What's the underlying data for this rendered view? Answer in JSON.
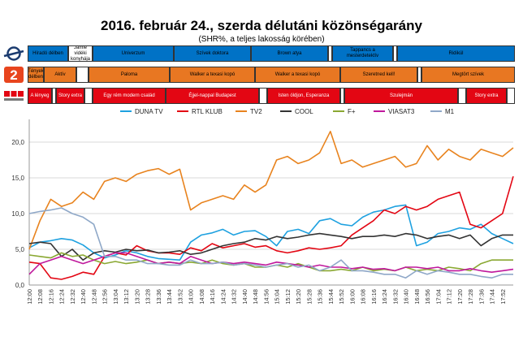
{
  "header": {
    "title": "2016. február 24., szerda délutáni közönségarány",
    "subtitle": "(SHR%, a teljes lakosság körében)"
  },
  "colors": {
    "duna_block": "#0072c6",
    "tv2_block": "#e87722",
    "rtl_block": "#e30613",
    "tv2_logo": "#e8451e",
    "rtl_logo": "#e30613",
    "duna_logo": "#1b3b6f"
  },
  "schedule": [
    {
      "channel": "DUNA TV",
      "logo_icon": "duna-tv-logo-icon",
      "color": "#0072c6",
      "programs": [
        {
          "label": "Híradó délben",
          "start": 0,
          "end": 10,
          "filled": true
        },
        {
          "label": "Jamie vidéki konyhája",
          "start": 10,
          "end": 16,
          "filled": false
        },
        {
          "label": "Univerzum",
          "start": 16,
          "end": 36,
          "filled": true
        },
        {
          "label": "Szívek doktora",
          "start": 36,
          "end": 55,
          "filled": true
        },
        {
          "label": "Brown atya",
          "start": 55,
          "end": 74,
          "filled": true
        },
        {
          "label": "",
          "start": 74,
          "end": 75,
          "filled": false
        },
        {
          "label": "Tappancs a mesterdetektív",
          "start": 75,
          "end": 90,
          "filled": true
        },
        {
          "label": "",
          "start": 90,
          "end": 91,
          "filled": false
        },
        {
          "label": "Ridikül",
          "start": 91,
          "end": 120,
          "filled": true
        }
      ]
    },
    {
      "channel": "TV2",
      "logo_icon": "tv2-logo-icon",
      "color": "#e87722",
      "programs": [
        {
          "label": "Tények délben",
          "start": 0,
          "end": 4,
          "filled": true
        },
        {
          "label": "Aktív",
          "start": 4,
          "end": 12,
          "filled": true
        },
        {
          "label": "",
          "start": 12,
          "end": 15,
          "filled": false
        },
        {
          "label": "Paloma",
          "start": 15,
          "end": 35,
          "filled": true
        },
        {
          "label": "Walker a texasi kopó",
          "start": 35,
          "end": 56,
          "filled": true
        },
        {
          "label": "Walker a texasi kopó",
          "start": 56,
          "end": 77,
          "filled": true
        },
        {
          "label": "Szeretned kell!",
          "start": 77,
          "end": 96,
          "filled": true
        },
        {
          "label": "",
          "start": 96,
          "end": 97,
          "filled": false
        },
        {
          "label": "Megtört szívek",
          "start": 97,
          "end": 120,
          "filled": true
        }
      ]
    },
    {
      "channel": "RTL KLUB",
      "logo_icon": "rtl-klub-logo-icon",
      "color": "#e30613",
      "programs": [
        {
          "label": "A lényeg",
          "start": 0,
          "end": 6,
          "filled": true
        },
        {
          "label": "",
          "start": 6,
          "end": 7,
          "filled": false
        },
        {
          "label": "Story extra",
          "start": 7,
          "end": 14,
          "filled": true
        },
        {
          "label": "",
          "start": 14,
          "end": 16,
          "filled": false
        },
        {
          "label": "Egy rém modern család",
          "start": 16,
          "end": 34,
          "filled": true
        },
        {
          "label": "Éjjel-nappal Budapest",
          "start": 34,
          "end": 57,
          "filled": true
        },
        {
          "label": "",
          "start": 57,
          "end": 59,
          "filled": false
        },
        {
          "label": "Isten óldjon, Esperanza",
          "start": 59,
          "end": 77,
          "filled": true
        },
        {
          "label": "",
          "start": 77,
          "end": 78,
          "filled": false
        },
        {
          "label": "Szulejmán",
          "start": 78,
          "end": 106,
          "filled": true
        },
        {
          "label": "",
          "start": 106,
          "end": 108,
          "filled": false
        },
        {
          "label": "Story extra",
          "start": 108,
          "end": 118,
          "filled": true
        },
        {
          "label": "",
          "start": 118,
          "end": 120,
          "filled": false
        }
      ]
    }
  ],
  "chart_data": {
    "type": "line",
    "title": "",
    "xlabel": "",
    "ylabel": "",
    "ylim": [
      0,
      22.5
    ],
    "yticks": [
      0,
      5,
      10,
      15,
      20
    ],
    "ytick_labels": [
      "0,0",
      "5,0",
      "10,0",
      "15,0",
      "20,0"
    ],
    "grid": "horizontal",
    "legend_position": "top",
    "x": [
      "12:00",
      "12:08",
      "12:16",
      "12:24",
      "12:32",
      "12:40",
      "12:48",
      "12:56",
      "13:04",
      "13:12",
      "13:20",
      "13:28",
      "13:36",
      "13:44",
      "13:52",
      "14:00",
      "14:08",
      "14:16",
      "14:24",
      "14:32",
      "14:40",
      "14:48",
      "14:56",
      "15:04",
      "15:12",
      "15:20",
      "15:28",
      "15:36",
      "15:44",
      "15:52",
      "16:00",
      "16:08",
      "16:16",
      "16:24",
      "16:32",
      "16:40",
      "16:48",
      "16:56",
      "17:04",
      "17:12",
      "17:20",
      "17:28",
      "17:36",
      "17:44",
      "17:52",
      "17:58"
    ],
    "xtick_labels": [
      "12:00",
      "12:08",
      "12:16",
      "12:24",
      "12:32",
      "12:40",
      "12:48",
      "12:56",
      "13:04",
      "13:12",
      "13:20",
      "13:28",
      "13:36",
      "13:44",
      "13:52",
      "14:00",
      "14:08",
      "14:16",
      "14:24",
      "14:32",
      "14:40",
      "14:48",
      "14:56",
      "15:04",
      "15:12",
      "15:20",
      "15:28",
      "15:36",
      "15:44",
      "15:52",
      "16:00",
      "16:08",
      "16:16",
      "16:24",
      "16:32",
      "16:40",
      "16:48",
      "16:56",
      "17:04",
      "17:12",
      "17:20",
      "17:28",
      "17:36",
      "17:44",
      "17:52"
    ],
    "series": [
      {
        "name": "DUNA TV",
        "color": "#1ea1e0",
        "values": [
          5.2,
          6.0,
          6.2,
          6.5,
          6.3,
          5.6,
          4.5,
          3.8,
          4.2,
          4.8,
          4.5,
          4.0,
          3.7,
          3.6,
          3.5,
          6.0,
          7.0,
          7.3,
          7.8,
          7.0,
          7.5,
          7.6,
          6.8,
          5.5,
          7.5,
          7.8,
          7.2,
          9.0,
          9.3,
          8.5,
          8.3,
          9.5,
          10.2,
          10.5,
          11.0,
          11.2,
          5.5,
          6.0,
          7.2,
          7.5,
          8.0,
          7.8,
          8.5,
          7.2,
          6.5,
          5.8
        ]
      },
      {
        "name": "RTL KLUB",
        "color": "#e30613",
        "values": [
          3.2,
          3.0,
          1.0,
          0.8,
          1.2,
          1.8,
          1.5,
          4.0,
          4.5,
          4.2,
          5.5,
          4.8,
          4.5,
          4.5,
          4.3,
          5.2,
          4.8,
          5.8,
          5.2,
          5.5,
          5.8,
          5.3,
          5.5,
          4.8,
          4.5,
          4.8,
          5.2,
          5.0,
          5.2,
          5.5,
          7.0,
          8.0,
          9.0,
          10.5,
          10.0,
          11.0,
          10.5,
          11.0,
          12.0,
          12.5,
          13.0,
          8.5,
          8.0,
          9.0,
          10.0,
          15.2
        ]
      },
      {
        "name": "TV2",
        "color": "#e8831e",
        "values": [
          5.0,
          9.0,
          12.0,
          11.0,
          11.5,
          13.0,
          12.0,
          14.5,
          15.0,
          14.5,
          15.5,
          16.0,
          16.3,
          15.5,
          16.2,
          10.5,
          11.5,
          12.0,
          12.5,
          12.0,
          14.0,
          13.0,
          14.0,
          17.5,
          18.0,
          17.0,
          17.5,
          18.5,
          21.5,
          17.0,
          17.5,
          16.5,
          17.0,
          17.5,
          18.0,
          16.5,
          17.0,
          19.5,
          17.5,
          19.0,
          18.0,
          17.5,
          19.0,
          18.5,
          18.0,
          19.2
        ]
      },
      {
        "name": "COOL",
        "color": "#333333",
        "values": [
          5.8,
          6.0,
          5.8,
          4.0,
          5.0,
          3.5,
          4.5,
          4.8,
          4.6,
          5.0,
          4.8,
          4.9,
          4.5,
          4.6,
          4.8,
          4.3,
          4.5,
          5.0,
          5.5,
          5.8,
          6.0,
          6.5,
          6.3,
          6.8,
          6.5,
          6.7,
          7.0,
          7.2,
          7.0,
          6.8,
          6.5,
          6.8,
          6.8,
          7.0,
          6.8,
          7.2,
          7.0,
          6.5,
          6.8,
          7.0,
          6.5,
          7.0,
          5.5,
          6.5,
          7.0,
          7.0
        ]
      },
      {
        "name": "F+",
        "color": "#8aa832",
        "values": [
          4.2,
          4.0,
          3.8,
          4.5,
          4.0,
          4.2,
          3.5,
          3.0,
          3.3,
          3.0,
          3.2,
          3.5,
          3.0,
          3.2,
          3.0,
          3.2,
          3.0,
          3.5,
          3.0,
          2.8,
          3.0,
          2.5,
          2.5,
          2.8,
          2.5,
          3.0,
          2.5,
          2.0,
          2.0,
          2.2,
          2.0,
          2.5,
          2.0,
          2.2,
          2.0,
          2.5,
          2.0,
          2.2,
          2.0,
          2.5,
          2.3,
          2.0,
          3.0,
          3.5,
          3.5,
          3.5
        ]
      },
      {
        "name": "VIASAT3",
        "color": "#c0189c",
        "values": [
          1.5,
          3.0,
          3.5,
          4.0,
          3.5,
          3.0,
          3.5,
          4.0,
          4.5,
          4.5,
          4.0,
          3.5,
          3.0,
          3.2,
          3.0,
          4.0,
          3.5,
          3.0,
          3.2,
          3.0,
          3.2,
          3.0,
          2.8,
          3.2,
          3.0,
          2.8,
          2.5,
          2.8,
          2.5,
          2.5,
          2.3,
          2.5,
          2.2,
          2.3,
          2.0,
          2.5,
          2.5,
          2.3,
          2.5,
          2.0,
          2.0,
          2.3,
          2.0,
          1.8,
          2.0,
          2.2
        ]
      },
      {
        "name": "M1",
        "color": "#8fa8c8",
        "values": [
          10.0,
          10.3,
          10.5,
          10.8,
          10.0,
          9.5,
          8.5,
          4.0,
          4.0,
          3.5,
          3.5,
          3.0,
          3.0,
          2.8,
          2.8,
          3.5,
          3.0,
          3.0,
          3.2,
          2.8,
          3.0,
          2.8,
          2.5,
          2.8,
          3.0,
          2.5,
          2.8,
          2.0,
          2.5,
          3.5,
          2.0,
          2.0,
          1.8,
          1.5,
          1.5,
          1.0,
          2.0,
          1.5,
          2.0,
          1.8,
          1.5,
          1.5,
          1.2,
          1.0,
          1.5,
          1.5
        ]
      }
    ]
  }
}
